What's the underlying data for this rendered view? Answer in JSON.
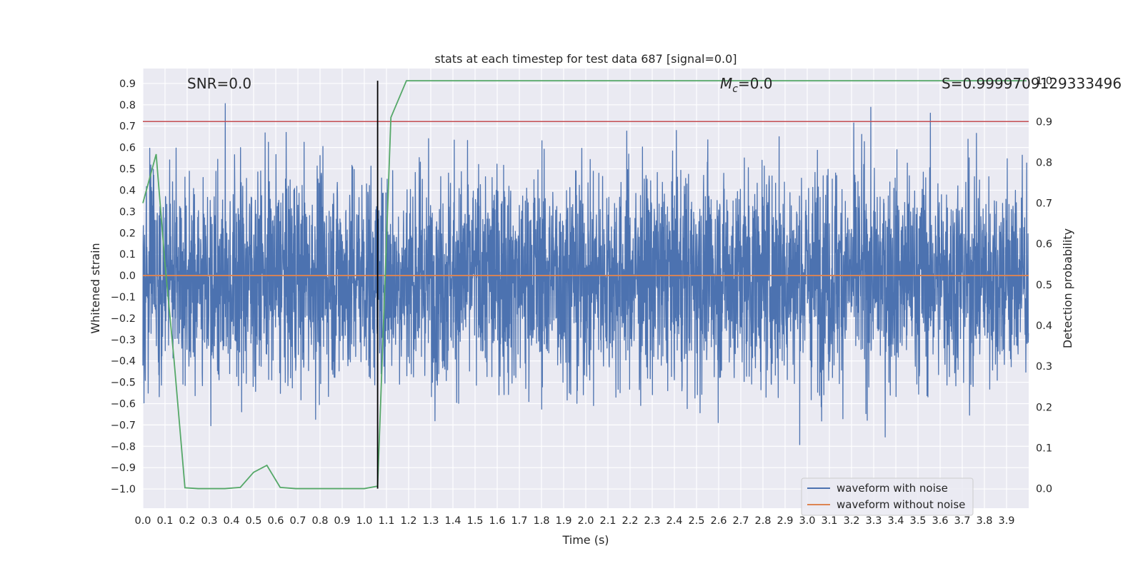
{
  "chart_data": {
    "type": "line",
    "title": "stats at each timestep for test data 687 [signal=0.0]",
    "xlabel": "Time (s)",
    "ylabel": "Whitened strain",
    "ylabel_right": "Detection probability",
    "xlim": [
      0.0,
      4.0
    ],
    "ylim": [
      -1.09,
      0.97
    ],
    "ylim_right": [
      -0.048,
      1.03
    ],
    "x_ticks": [
      0.0,
      0.1,
      0.2,
      0.3,
      0.4,
      0.5,
      0.6,
      0.7,
      0.8,
      0.9,
      1.0,
      1.1,
      1.2,
      1.3,
      1.4,
      1.5,
      1.6,
      1.7,
      1.8,
      1.9,
      2.0,
      2.1,
      2.2,
      2.3,
      2.4,
      2.5,
      2.6,
      2.7,
      2.8,
      2.9,
      3.0,
      3.1,
      3.2,
      3.3,
      3.4,
      3.5,
      3.6,
      3.7,
      3.8,
      3.9
    ],
    "x_tick_labels": [
      "0.0",
      "0.1",
      "0.2",
      "0.3",
      "0.4",
      "0.5",
      "0.6",
      "0.7",
      "0.8",
      "0.9",
      "1.0",
      "1.1",
      "1.2",
      "1.3",
      "1.4",
      "1.5",
      "1.6",
      "1.7",
      "1.8",
      "1.9",
      "2.0",
      "2.1",
      "2.2",
      "2.3",
      "2.4",
      "2.5",
      "2.6",
      "2.7",
      "2.8",
      "2.9",
      "3.0",
      "3.1",
      "3.2",
      "3.3",
      "3.4",
      "3.5",
      "3.6",
      "3.7",
      "3.8",
      "3.9"
    ],
    "y_ticks": [
      0.9,
      0.8,
      0.7,
      0.6,
      0.5,
      0.4,
      0.3,
      0.2,
      0.1,
      0.0,
      -0.1,
      -0.2,
      -0.3,
      -0.4,
      -0.5,
      -0.6,
      -0.7,
      -0.8,
      -0.9,
      -1.0
    ],
    "y_tick_labels": [
      "0.9",
      "0.8",
      "0.7",
      "0.6",
      "0.5",
      "0.4",
      "0.3",
      "0.2",
      "0.1",
      "0.0",
      "−0.1",
      "−0.2",
      "−0.3",
      "−0.4",
      "−0.5",
      "−0.6",
      "−0.7",
      "−0.8",
      "−0.9",
      "−1.0"
    ],
    "y_right_ticks": [
      1.0,
      0.9,
      0.8,
      0.7,
      0.6,
      0.5,
      0.4,
      0.3,
      0.2,
      0.1,
      0.0
    ],
    "y_right_tick_labels": [
      "1.0",
      "0.9",
      "0.8",
      "0.7",
      "0.6",
      "0.5",
      "0.4",
      "0.3",
      "0.2",
      "0.1",
      "0.0"
    ],
    "annotations": {
      "snr": "SNR=0.0",
      "mc_symbol": "M",
      "mc_sub": "c",
      "mc_value": "=0.0",
      "s": "S=0.9999709129333496"
    },
    "legend": {
      "placement": "lower-right",
      "entries": [
        "waveform with noise",
        "waveform without noise"
      ]
    },
    "vertical_marker_x": 1.06,
    "threshold_probability": 0.9,
    "series": [
      {
        "name": "waveform with noise",
        "axis": "left",
        "kind": "noise",
        "color": "#4c72b0",
        "std": 0.25,
        "max_abs": 0.88,
        "samples": 4000
      },
      {
        "name": "waveform without noise",
        "axis": "left",
        "color": "#dd8452",
        "x": [
          0.0,
          4.0
        ],
        "y": [
          0.0,
          0.0
        ]
      },
      {
        "name": "detection probability",
        "axis": "right",
        "color": "#55a868",
        "x": [
          0.0,
          0.06,
          0.1,
          0.14,
          0.19,
          0.25,
          0.31,
          0.37,
          0.44,
          0.5,
          0.56,
          0.62,
          0.69,
          0.75,
          0.81,
          0.87,
          0.94,
          1.0,
          1.06,
          1.12,
          1.19,
          1.25,
          1.5,
          2.0,
          2.5,
          3.0,
          3.5,
          3.99
        ],
        "y": [
          0.7,
          0.82,
          0.55,
          0.32,
          0.002,
          0.0,
          0.0,
          0.0,
          0.003,
          0.04,
          0.057,
          0.003,
          0.0,
          0.0,
          0.0,
          0.0,
          0.0,
          0.0,
          0.006,
          0.91,
          1.0,
          1.0,
          1.0,
          1.0,
          1.0,
          1.0,
          1.0,
          1.0
        ]
      }
    ],
    "colors": {
      "background": "#eaeaf2",
      "grid": "#ffffff",
      "threshold": "#c44e52",
      "marker": "#000000"
    }
  }
}
